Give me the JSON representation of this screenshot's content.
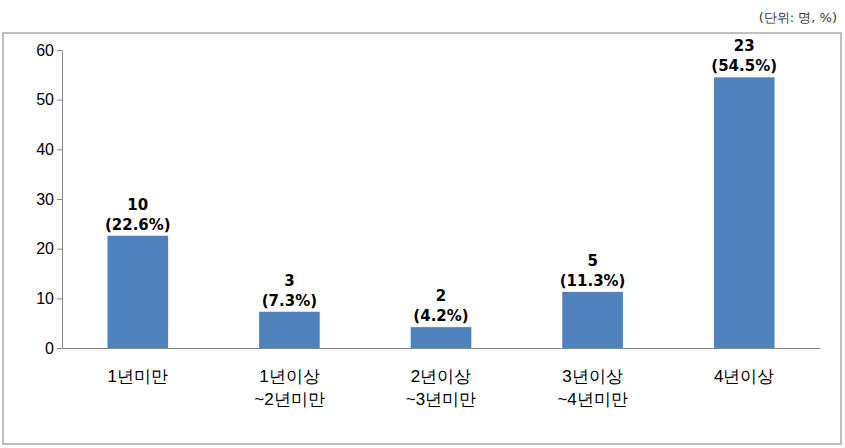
{
  "chart_data": {
    "type": "bar",
    "subtitle": "(단위: 명, %)",
    "categories": [
      "1년미만",
      "1년이상\n~2년미만",
      "2년이상\n~3년미만",
      "3년이상\n~4년미만",
      "4년이상"
    ],
    "values": [
      22.6,
      7.3,
      4.2,
      11.3,
      54.5
    ],
    "value_labels": [
      "(22.6%)",
      "(7.3%)",
      "(4.2%)",
      "(11.3%)",
      "(54.5%)"
    ],
    "counts": [
      10,
      3,
      2,
      5,
      23
    ],
    "color": "#4f81bd",
    "ylim": [
      0,
      60
    ],
    "yticks": [
      0,
      10,
      20,
      30,
      40,
      50,
      60
    ],
    "grid": false,
    "data_labels": true
  }
}
